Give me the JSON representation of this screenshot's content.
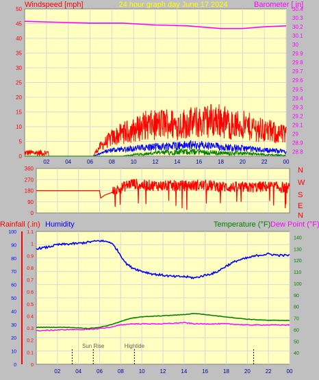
{
  "header": {
    "left": "Windspeed [mph]",
    "center": "24 hour graph day   June 17 2024",
    "right": "Barometer [ in]"
  },
  "wind_dir_labels": [
    "N",
    "W",
    "S",
    "E",
    "N"
  ],
  "bottom_header": {
    "rain": "Rainfall (.in)",
    "humidity": "Humidity",
    "temperature": "Temperature (°F)",
    "dewpoint": "Dew Point (°F)"
  },
  "markers": {
    "sunrise": "Sun Rise",
    "hightide": "Hightide"
  },
  "colors": {
    "plot_bg": "#ffffc0",
    "frame": "#c0c0c0",
    "grid": "#d8d8d8",
    "wind": "#ff0000",
    "wind_avg": "#0000ff",
    "wind_green": "#008000",
    "barometer": "#ff00ff",
    "humidity": "#0000ff",
    "temperature": "#008000",
    "dewpoint": "#ff00ff",
    "title": "#ffff00"
  },
  "chart_data": [
    {
      "type": "line",
      "id": "wind_barometer",
      "x_ticks": [
        "02",
        "04",
        "06",
        "08",
        "10",
        "12",
        "14",
        "16",
        "18",
        "20",
        "22",
        "00"
      ],
      "xlim": [
        0,
        24
      ],
      "y_left_ticks": [
        0,
        5,
        10,
        15,
        20,
        25,
        30,
        35,
        40,
        45,
        50
      ],
      "ylim_left": [
        0,
        50
      ],
      "y_right_ticks": [
        "28.8",
        "28.9",
        "29",
        "29.1",
        "29.2",
        "29.3",
        "29.4",
        "29.5",
        "29.6",
        "29.7",
        "29.8",
        "29.9",
        "30",
        "30.1",
        "30.2",
        "30.3",
        "30.4"
      ],
      "ylim_right": [
        28.75,
        30.4
      ],
      "series": [
        {
          "name": "Windspeed",
          "axis": "left",
          "style": "gust",
          "points": [
            [
              0,
              0.5
            ],
            [
              0.5,
              2
            ],
            [
              1,
              0.5
            ],
            [
              1.5,
              2
            ],
            [
              2,
              1
            ],
            [
              2.2,
              0
            ],
            [
              6.3,
              0
            ],
            [
              6.5,
              1.5
            ],
            [
              7,
              4
            ],
            [
              8,
              7
            ],
            [
              9,
              9
            ],
            [
              10,
              10
            ],
            [
              11,
              12
            ],
            [
              12,
              12
            ],
            [
              13,
              13
            ],
            [
              14,
              12
            ],
            [
              15,
              13
            ],
            [
              16,
              13
            ],
            [
              17,
              14
            ],
            [
              18,
              14
            ],
            [
              19,
              12
            ],
            [
              20,
              12
            ],
            [
              21,
              11
            ],
            [
              22,
              10
            ],
            [
              23,
              9
            ],
            [
              24,
              8
            ]
          ]
        },
        {
          "name": "Average wind",
          "axis": "left",
          "style": "band",
          "points": [
            [
              0,
              0
            ],
            [
              6.3,
              0
            ],
            [
              7,
              1
            ],
            [
              8,
              2
            ],
            [
              10,
              2.5
            ],
            [
              12,
              3
            ],
            [
              14,
              3.5
            ],
            [
              16,
              3.5
            ],
            [
              18,
              3
            ],
            [
              20,
              2.5
            ],
            [
              22,
              2
            ],
            [
              24,
              1.5
            ]
          ]
        },
        {
          "name": "Wind lull",
          "axis": "left",
          "style": "band",
          "points": [
            [
              0,
              0
            ],
            [
              9,
              0
            ],
            [
              10,
              0.5
            ],
            [
              12,
              1
            ],
            [
              14,
              1.5
            ],
            [
              16,
              1.5
            ],
            [
              18,
              1
            ],
            [
              20,
              1
            ],
            [
              22,
              0.5
            ],
            [
              24,
              0.3
            ]
          ]
        },
        {
          "name": "Barometer",
          "axis": "right",
          "style": "line",
          "points": [
            [
              0,
              30.26
            ],
            [
              3,
              30.25
            ],
            [
              6,
              30.24
            ],
            [
              9,
              30.24
            ],
            [
              12,
              30.22
            ],
            [
              15,
              30.21
            ],
            [
              18,
              30.18
            ],
            [
              20,
              30.18
            ],
            [
              22,
              30.2
            ],
            [
              24,
              30.21
            ]
          ]
        }
      ]
    },
    {
      "type": "line",
      "id": "wind_direction",
      "x_ticks": [],
      "xlim": [
        0,
        24
      ],
      "y_ticks": [
        0,
        90,
        180,
        270,
        360
      ],
      "ylim": [
        0,
        360
      ],
      "series": [
        {
          "name": "Wind direction",
          "style": "noisy",
          "points": [
            [
              0,
              180
            ],
            [
              6,
              180
            ],
            [
              6.1,
              120
            ],
            [
              6.5,
              145
            ],
            [
              7,
              160
            ],
            [
              8,
              200
            ],
            [
              9,
              240
            ],
            [
              10,
              225
            ],
            [
              12,
              220
            ],
            [
              14,
              220
            ],
            [
              16,
              225
            ],
            [
              18,
              210
            ],
            [
              20,
              205
            ],
            [
              22,
              215
            ],
            [
              24,
              200
            ]
          ]
        }
      ]
    },
    {
      "type": "line",
      "id": "rain_humidity_temp",
      "x_ticks": [
        "02",
        "04",
        "06",
        "08",
        "10",
        "12",
        "14",
        "16",
        "18",
        "20",
        "22",
        "00"
      ],
      "xlim": [
        0,
        24
      ],
      "y_left_ticks": [
        0,
        10,
        20,
        30,
        40,
        50,
        60,
        70,
        80,
        90,
        100
      ],
      "y_left_ticks_rain": [
        "0",
        "0.1",
        "0.2",
        "0.3",
        "0.4",
        "0.5",
        "0.6",
        "0.7",
        "0.8",
        "0.9",
        "1",
        "1.1"
      ],
      "ylim_left": [
        0,
        100
      ],
      "y_right_ticks": [
        40,
        50,
        60,
        70,
        80,
        90,
        100,
        110,
        120,
        130,
        140
      ],
      "ylim_right": [
        30,
        145
      ],
      "series": [
        {
          "name": "Humidity",
          "axis": "left",
          "style": "line",
          "points": [
            [
              0,
              87
            ],
            [
              1,
              88
            ],
            [
              2,
              90
            ],
            [
              4,
              91
            ],
            [
              5,
              92
            ],
            [
              6,
              93
            ],
            [
              7,
              92
            ],
            [
              7.5,
              88
            ],
            [
              8,
              82
            ],
            [
              8.5,
              76
            ],
            [
              9,
              73
            ],
            [
              10,
              70
            ],
            [
              11,
              68
            ],
            [
              12,
              67
            ],
            [
              13,
              66
            ],
            [
              14,
              66
            ],
            [
              15,
              65
            ],
            [
              16,
              67
            ],
            [
              17,
              69
            ],
            [
              18,
              74
            ],
            [
              19,
              78
            ],
            [
              20,
              80
            ],
            [
              21,
              82
            ],
            [
              22,
              83
            ],
            [
              23,
              82
            ],
            [
              24,
              82
            ]
          ]
        },
        {
          "name": "Temperature",
          "axis": "right",
          "style": "line",
          "points": [
            [
              0,
              62
            ],
            [
              3,
              62
            ],
            [
              5,
              61
            ],
            [
              6,
              62
            ],
            [
              7,
              64
            ],
            [
              8,
              67
            ],
            [
              9,
              70
            ],
            [
              10,
              71
            ],
            [
              12,
              72
            ],
            [
              14,
              73
            ],
            [
              15,
              74
            ],
            [
              16,
              73
            ],
            [
              18,
              71
            ],
            [
              20,
              69
            ],
            [
              22,
              68
            ],
            [
              24,
              68
            ]
          ]
        },
        {
          "name": "Dew Point",
          "axis": "right",
          "style": "line",
          "points": [
            [
              0,
              59
            ],
            [
              3,
              60
            ],
            [
              5,
              60
            ],
            [
              6,
              61
            ],
            [
              7,
              62
            ],
            [
              8,
              64
            ],
            [
              9,
              65
            ],
            [
              10,
              65
            ],
            [
              12,
              65
            ],
            [
              14,
              66
            ],
            [
              15,
              65
            ],
            [
              16,
              65
            ],
            [
              18,
              65
            ],
            [
              20,
              64
            ],
            [
              22,
              64
            ],
            [
              24,
              64
            ]
          ]
        }
      ],
      "markers": [
        {
          "label": "Sun Rise",
          "x": 5.4
        },
        {
          "label": "Hightide",
          "x": 9.3
        },
        {
          "label": "",
          "x": 3.4
        },
        {
          "label": "",
          "x": 20.6
        }
      ]
    }
  ]
}
